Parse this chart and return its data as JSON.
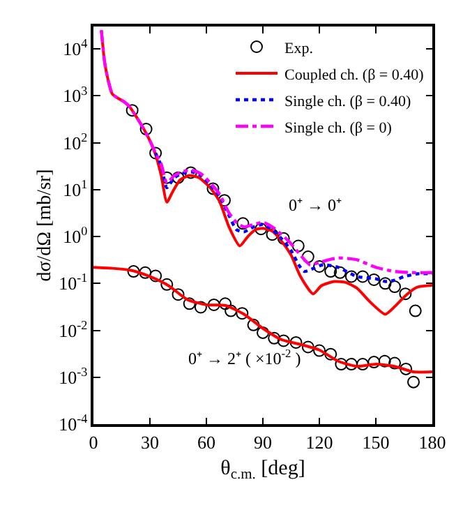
{
  "chart_data": {
    "type": "line",
    "xlabel": "θ$_{c.m.}$ [deg]",
    "ylabel": "dσ/dΩ [mb/sr]",
    "xlim": [
      0,
      180
    ],
    "xticks": [
      0,
      30,
      60,
      90,
      120,
      150,
      180
    ],
    "ylim": [
      0.0001,
      30000
    ],
    "log": true,
    "yticks": [
      {
        "value": 0.0001,
        "label": "10$^{-4}$"
      },
      {
        "value": 0.001,
        "label": "10$^{-3}$"
      },
      {
        "value": 0.01,
        "label": "10$^{-2}$"
      },
      {
        "value": 0.1,
        "label": "10$^{-1}$"
      },
      {
        "value": 1,
        "label": "10$^{0}$"
      },
      {
        "value": 10,
        "label": "10$^{1}$"
      },
      {
        "value": 100,
        "label": "10$^{2}$"
      },
      {
        "value": 1000,
        "label": "10$^{3}$"
      },
      {
        "value": 10000,
        "label": "10$^{4}$"
      }
    ],
    "legend": "top right",
    "annotations": [
      "0⁺ → 0⁺",
      "0⁺ → 2⁺ ( ×10$^{-2}$ )"
    ],
    "series": [
      {
        "name": "Exp.",
        "type": "scatter",
        "marker": "circle",
        "color": "#000000",
        "x": [
          20.6,
          28,
          33,
          39,
          45,
          51.7,
          63.5,
          69.6,
          79.4,
          89,
          95,
          101,
          108.8,
          114,
          120,
          126,
          131,
          137,
          143,
          149,
          155,
          160,
          165.7,
          171
        ],
        "values": [
          490,
          195,
          60,
          18,
          18,
          23,
          10.5,
          5.9,
          1.9,
          1.45,
          1.1,
          0.91,
          0.63,
          0.37,
          0.23,
          0.18,
          0.17,
          0.14,
          0.14,
          0.12,
          0.1,
          0.085,
          0.06,
          0.026
        ]
      },
      {
        "name": "Coupled ch. (β = 0.40)",
        "line_style": "solid",
        "color": "#ff0000",
        "x": [
          4.2,
          6,
          8,
          10,
          13,
          16,
          19,
          22,
          26,
          30,
          33,
          36,
          39,
          42,
          46,
          51,
          56,
          62,
          67,
          72,
          77.7,
          82,
          86,
          90,
          95,
          100,
          105,
          110,
          116.7,
          121,
          128,
          134,
          140,
          147,
          155,
          160,
          166,
          172,
          180
        ],
        "values": [
          25000,
          5000,
          2000,
          1100,
          890,
          760,
          600,
          400,
          220,
          110,
          56,
          20,
          5.4,
          8.9,
          16,
          20,
          18,
          11,
          5.6,
          1.6,
          0.63,
          1.0,
          1.4,
          1.5,
          1.3,
          0.79,
          0.4,
          0.14,
          0.06,
          0.089,
          0.11,
          0.105,
          0.079,
          0.04,
          0.022,
          0.032,
          0.056,
          0.083,
          0.091
        ]
      },
      {
        "name": "Single ch. (β = 0.40)",
        "line_style": "dotted",
        "color": "#0000ff",
        "x": [
          33,
          36,
          39,
          43,
          47,
          52,
          57,
          62,
          67,
          72,
          76,
          80,
          85,
          90,
          95,
          100,
          105,
          109,
          112,
          117,
          122,
          130,
          140,
          150,
          155,
          160,
          165,
          172,
          180
        ],
        "values": [
          60,
          32,
          11,
          18,
          22,
          24,
          20,
          12.6,
          7.1,
          2.8,
          1.4,
          1.26,
          1.6,
          1.8,
          1.4,
          0.89,
          0.5,
          0.25,
          0.18,
          0.21,
          0.25,
          0.22,
          0.14,
          0.126,
          0.11,
          0.117,
          0.14,
          0.16,
          0.16
        ]
      },
      {
        "name": "Single ch. (β = 0)",
        "line_style": "dashdot",
        "color": "#ff00ff",
        "x": [
          4.2,
          6,
          8,
          10,
          13,
          16,
          19,
          22,
          26,
          30,
          33,
          36,
          39,
          43,
          47,
          52,
          57,
          62,
          67,
          72,
          76,
          80,
          85,
          90,
          95,
          100,
          105,
          110,
          115,
          120,
          125,
          130,
          135,
          140,
          150,
          160,
          170,
          180
        ],
        "values": [
          25000,
          5000,
          2000,
          1100,
          890,
          760,
          600,
          400,
          220,
          110,
          60,
          35,
          14,
          20,
          24,
          26,
          22,
          14,
          8,
          3.2,
          2.0,
          1.6,
          1.8,
          2.0,
          1.6,
          1.1,
          0.7,
          0.4,
          0.25,
          0.28,
          0.32,
          0.35,
          0.34,
          0.32,
          0.22,
          0.18,
          0.17,
          0.17
        ]
      },
      {
        "type": "scatter",
        "marker": "circle",
        "color": "#000000",
        "x": [
          21.3,
          27.5,
          33,
          39,
          45,
          51,
          57,
          64,
          70,
          73,
          79,
          85,
          90,
          96,
          101,
          107.6,
          114,
          120,
          126,
          131.6,
          137,
          143,
          149,
          154.7,
          160,
          166,
          170
        ],
        "values": [
          0.18,
          0.17,
          0.145,
          0.095,
          0.058,
          0.037,
          0.031,
          0.035,
          0.037,
          0.026,
          0.023,
          0.013,
          0.0089,
          0.0068,
          0.006,
          0.0055,
          0.0044,
          0.0037,
          0.0031,
          0.0019,
          0.0019,
          0.0019,
          0.0021,
          0.0022,
          0.002,
          0.0015,
          0.00079
        ]
      },
      {
        "line_style": "solid",
        "color": "#ff0000",
        "x": [
          0,
          10,
          20,
          30,
          40,
          50,
          60,
          70,
          80,
          90,
          100,
          110,
          120,
          130,
          140,
          150,
          160,
          170,
          180
        ],
        "values": [
          0.22,
          0.21,
          0.19,
          0.14,
          0.089,
          0.045,
          0.035,
          0.034,
          0.022,
          0.011,
          0.0063,
          0.005,
          0.0038,
          0.0022,
          0.0017,
          0.0019,
          0.0017,
          0.0013,
          0.0013
        ]
      }
    ]
  }
}
